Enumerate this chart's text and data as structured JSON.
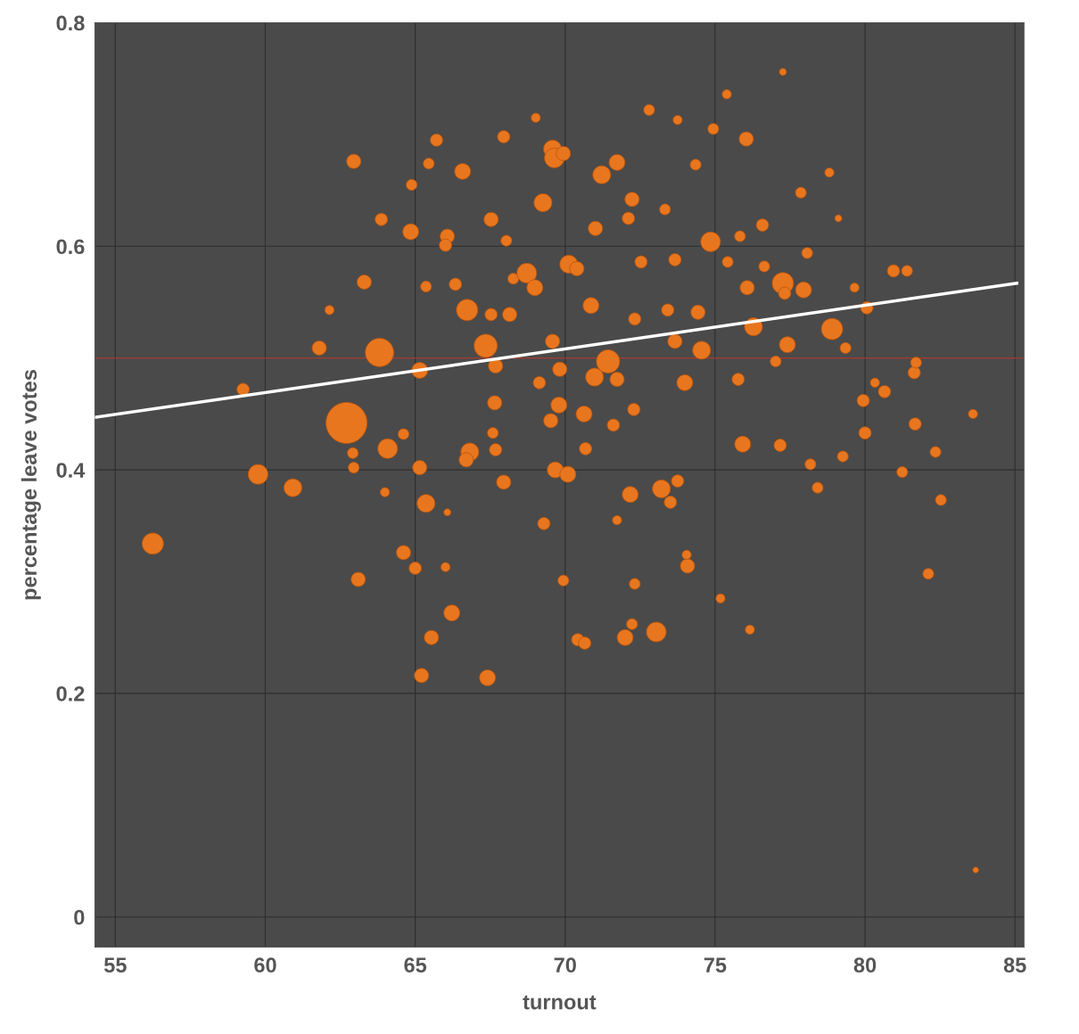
{
  "chart_data": {
    "type": "bubble",
    "xlabel": "turnout",
    "ylabel": "percentage leave votes",
    "xlim": [
      54.32,
      85.3
    ],
    "ylim": [
      -0.027,
      0.8
    ],
    "xticks": [
      55,
      60,
      65,
      70,
      75,
      80,
      85
    ],
    "yticks": [
      0,
      0.2,
      0.4,
      0.6,
      0.8
    ],
    "grid": true,
    "ref_lines": [
      {
        "axis": "y",
        "value": 0.5,
        "color": "#c0392b"
      }
    ],
    "series": [
      {
        "color": "#e8761e",
        "marker": "circle",
        "x": [
          56.25,
          59.26,
          59.76,
          60.92,
          62.71,
          63.81,
          62.95,
          63.87,
          63.3,
          62.14,
          61.8,
          63.1,
          62.92,
          62.95,
          64.08,
          63.99,
          64.61,
          64.61,
          64.85,
          64.88,
          65.15,
          65.15,
          65.36,
          65.0,
          65.21,
          65.54,
          65.36,
          65.45,
          65.71,
          66.07,
          66.01,
          66.01,
          66.22,
          66.07,
          66.34,
          66.58,
          66.73,
          66.82,
          66.7,
          67.41,
          67.35,
          67.68,
          67.65,
          67.53,
          67.53,
          67.59,
          67.68,
          67.95,
          67.95,
          68.15,
          68.04,
          68.27,
          68.72,
          68.99,
          69.26,
          69.14,
          69.29,
          69.58,
          69.58,
          69.64,
          69.94,
          69.67,
          70.09,
          69.79,
          69.52,
          69.82,
          69.94,
          70.12,
          70.39,
          70.42,
          70.65,
          70.63,
          70.68,
          70.86,
          70.98,
          71.01,
          71.22,
          71.43,
          71.73,
          71.61,
          71.73,
          72.0,
          72.17,
          72.29,
          72.32,
          72.23,
          72.23,
          72.32,
          73.04,
          73.21,
          73.51,
          73.75,
          73.99,
          74.08,
          73.42,
          73.66,
          74.43,
          74.55,
          74.85,
          75.18,
          75.39,
          76.04,
          75.92,
          75.77,
          76.28,
          76.07,
          76.16,
          77.26,
          77.26,
          77.41,
          77.17,
          77.86,
          77.95,
          78.9,
          78.81,
          78.42,
          78.18,
          79.26,
          80.0,
          79.94,
          80.06,
          80.95,
          81.4,
          81.24,
          81.67,
          81.64,
          82.35,
          82.11,
          82.53,
          83.6,
          83.69,
          80.65,
          80.33,
          81.7,
          72.8,
          69.02,
          73.75,
          74.94,
          76.64,
          75.42,
          77.02,
          79.35,
          79.65,
          79.11,
          72.53,
          74.05,
          71.73,
          76.58,
          78.07,
          77.32,
          74.35,
          73.33,
          72.11,
          73.66,
          75.83
        ],
        "values": [
          0.334,
          0.472,
          0.396,
          0.384,
          0.442,
          0.505,
          0.676,
          0.624,
          0.568,
          0.543,
          0.509,
          0.302,
          0.415,
          0.402,
          0.419,
          0.38,
          0.326,
          0.432,
          0.613,
          0.655,
          0.489,
          0.402,
          0.37,
          0.312,
          0.216,
          0.25,
          0.564,
          0.674,
          0.695,
          0.609,
          0.601,
          0.313,
          0.272,
          0.362,
          0.566,
          0.667,
          0.543,
          0.416,
          0.409,
          0.214,
          0.511,
          0.493,
          0.46,
          0.624,
          0.539,
          0.433,
          0.418,
          0.389,
          0.698,
          0.539,
          0.605,
          0.571,
          0.576,
          0.563,
          0.639,
          0.478,
          0.352,
          0.515,
          0.687,
          0.679,
          0.683,
          0.4,
          0.396,
          0.458,
          0.444,
          0.49,
          0.301,
          0.584,
          0.58,
          0.248,
          0.245,
          0.45,
          0.419,
          0.547,
          0.483,
          0.616,
          0.664,
          0.497,
          0.675,
          0.44,
          0.481,
          0.25,
          0.378,
          0.454,
          0.298,
          0.262,
          0.642,
          0.535,
          0.255,
          0.383,
          0.371,
          0.39,
          0.478,
          0.314,
          0.543,
          0.515,
          0.541,
          0.507,
          0.604,
          0.285,
          0.736,
          0.696,
          0.423,
          0.481,
          0.528,
          0.563,
          0.257,
          0.756,
          0.567,
          0.512,
          0.422,
          0.648,
          0.561,
          0.526,
          0.666,
          0.384,
          0.405,
          0.412,
          0.433,
          0.462,
          0.545,
          0.578,
          0.578,
          0.398,
          0.441,
          0.487,
          0.416,
          0.307,
          0.373,
          0.45,
          0.042,
          0.47,
          0.478,
          0.496,
          0.722,
          0.715,
          0.713,
          0.705,
          0.582,
          0.586,
          0.497,
          0.509,
          0.563,
          0.625,
          0.586,
          0.324,
          0.355,
          0.619,
          0.594,
          0.558,
          0.673,
          0.633,
          0.625,
          0.588,
          0.609
        ],
        "sizes": [
          0.27,
          0.09,
          0.23,
          0.19,
          1,
          0.48,
          0.12,
          0.09,
          0.12,
          0.05,
          0.12,
          0.12,
          0.07,
          0.07,
          0.23,
          0.05,
          0.12,
          0.07,
          0.15,
          0.07,
          0.15,
          0.12,
          0.19,
          0.09,
          0.12,
          0.12,
          0.07,
          0.07,
          0.09,
          0.12,
          0.09,
          0.05,
          0.15,
          0.03,
          0.09,
          0.15,
          0.27,
          0.19,
          0.12,
          0.15,
          0.32,
          0.12,
          0.12,
          0.12,
          0.09,
          0.07,
          0.09,
          0.12,
          0.09,
          0.12,
          0.07,
          0.07,
          0.23,
          0.15,
          0.19,
          0.09,
          0.09,
          0.12,
          0.19,
          0.23,
          0.12,
          0.15,
          0.15,
          0.15,
          0.12,
          0.12,
          0.07,
          0.19,
          0.12,
          0.09,
          0.09,
          0.15,
          0.09,
          0.15,
          0.19,
          0.12,
          0.19,
          0.32,
          0.15,
          0.09,
          0.12,
          0.15,
          0.15,
          0.09,
          0.07,
          0.07,
          0.12,
          0.09,
          0.23,
          0.19,
          0.09,
          0.09,
          0.15,
          0.12,
          0.09,
          0.12,
          0.12,
          0.19,
          0.23,
          0.05,
          0.05,
          0.12,
          0.15,
          0.09,
          0.19,
          0.12,
          0.05,
          0.03,
          0.27,
          0.15,
          0.09,
          0.07,
          0.15,
          0.27,
          0.05,
          0.07,
          0.07,
          0.07,
          0.09,
          0.09,
          0.09,
          0.09,
          0.07,
          0.07,
          0.09,
          0.09,
          0.07,
          0.07,
          0.07,
          0.05,
          0.02,
          0.09,
          0.05,
          0.07,
          0.07,
          0.05,
          0.05,
          0.07,
          0.07,
          0.07,
          0.07,
          0.07,
          0.05,
          0.03,
          0.09,
          0.05,
          0.05,
          0.09,
          0.07,
          0.09,
          0.07,
          0.07,
          0.09,
          0.09,
          0.07
        ]
      },
      {
        "type": "line",
        "color": "#ffffff",
        "x": [
          54.32,
          85.06
        ],
        "values": [
          0.447,
          0.567
        ]
      }
    ]
  }
}
